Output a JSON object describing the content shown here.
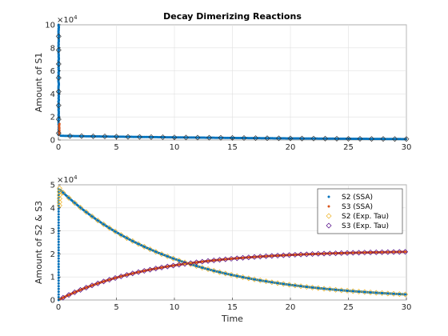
{
  "colors": {
    "s1_ssa": "#0072BD",
    "s1_tau": "#333333",
    "s2_ssa": "#0072BD",
    "s3_ssa": "#D95319",
    "s2_tau": "#EDB120",
    "s3_tau": "#4B0082",
    "s1_spike": "#D95319",
    "grid": "#E0E0E0",
    "axis": "#262626"
  },
  "chart_data": [
    {
      "type": "scatter",
      "title": "Decay Dimerizing Reactions",
      "xlabel": "",
      "ylabel": "Amount of S1",
      "xlim": [
        0,
        30
      ],
      "ylim": [
        0,
        100000
      ],
      "y_exponent_label": "×10",
      "y_exponent": "4",
      "x_ticks": [
        0,
        5,
        10,
        15,
        20,
        25,
        30
      ],
      "y_ticks": [
        0,
        20000,
        40000,
        60000,
        80000,
        100000
      ],
      "y_tick_labels": [
        "0",
        "2",
        "4",
        "6",
        "8",
        "10"
      ],
      "x_tick_labels": [
        "0",
        "5",
        "10",
        "15",
        "20",
        "25",
        "30"
      ],
      "grid": true,
      "series": [
        {
          "marker": "dot",
          "x": [
            0,
            0.0005,
            0.001,
            0.002,
            0.004,
            0.006,
            0.01,
            0.015,
            0.02,
            0.03,
            0.05,
            0.08,
            0.12,
            0.2,
            0.3,
            0.5,
            1,
            2,
            5,
            10,
            15,
            20,
            25,
            30
          ],
          "y": [
            100000,
            94000,
            86000,
            72000,
            52000,
            38000,
            22000,
            13000,
            9000,
            6000,
            4500,
            4000,
            3800,
            3700,
            3650,
            3600,
            3500,
            3300,
            2900,
            2300,
            1800,
            1400,
            1100,
            800
          ]
        },
        {
          "marker": "diamond",
          "x": [
            0,
            1,
            2,
            3,
            4,
            5,
            6,
            7,
            8,
            9,
            10,
            11,
            12,
            13,
            14,
            15,
            16,
            17,
            18,
            19,
            20,
            21,
            22,
            23,
            24,
            25,
            26,
            27,
            28,
            29,
            30
          ],
          "y": [
            100000,
            3500,
            3400,
            3250,
            3100,
            2950,
            2800,
            2650,
            2550,
            2400,
            2300,
            2200,
            2100,
            2000,
            1900,
            1800,
            1720,
            1640,
            1560,
            1480,
            1400,
            1330,
            1260,
            1200,
            1140,
            1080,
            1030,
            980,
            930,
            880,
            840
          ]
        }
      ]
    },
    {
      "type": "scatter",
      "title": "",
      "xlabel": "Time",
      "ylabel": "Amount of S2 & S3",
      "xlim": [
        0,
        30
      ],
      "ylim": [
        0,
        50000
      ],
      "y_exponent_label": "×10",
      "y_exponent": "4",
      "x_ticks": [
        0,
        5,
        10,
        15,
        20,
        25,
        30
      ],
      "y_ticks": [
        0,
        10000,
        20000,
        30000,
        40000,
        50000
      ],
      "y_tick_labels": [
        "0",
        "1",
        "2",
        "3",
        "4",
        "5"
      ],
      "x_tick_labels": [
        "0",
        "5",
        "10",
        "15",
        "20",
        "25",
        "30"
      ],
      "grid": true,
      "legend_position": "top-right",
      "series": [
        {
          "name": "S2 (SSA)",
          "marker": "dot",
          "color_key": "s2_ssa",
          "model": {
            "kind": "decay",
            "a": 48500,
            "k": 0.1,
            "floor": 0
          }
        },
        {
          "name": "S3 (SSA)",
          "marker": "dot",
          "color_key": "s3_ssa",
          "model": {
            "kind": "rise",
            "a": 21500,
            "k": 0.12,
            "floor": 0
          }
        },
        {
          "name": "S2 (Exp. Tau)",
          "marker": "diamond",
          "color_key": "s2_tau",
          "model": {
            "kind": "decay",
            "a": 48500,
            "k": 0.1,
            "floor": 0
          }
        },
        {
          "name": "S3 (Exp. Tau)",
          "marker": "diamond",
          "color_key": "s3_tau",
          "model": {
            "kind": "rise",
            "a": 21500,
            "k": 0.12,
            "floor": 0
          }
        }
      ]
    }
  ]
}
